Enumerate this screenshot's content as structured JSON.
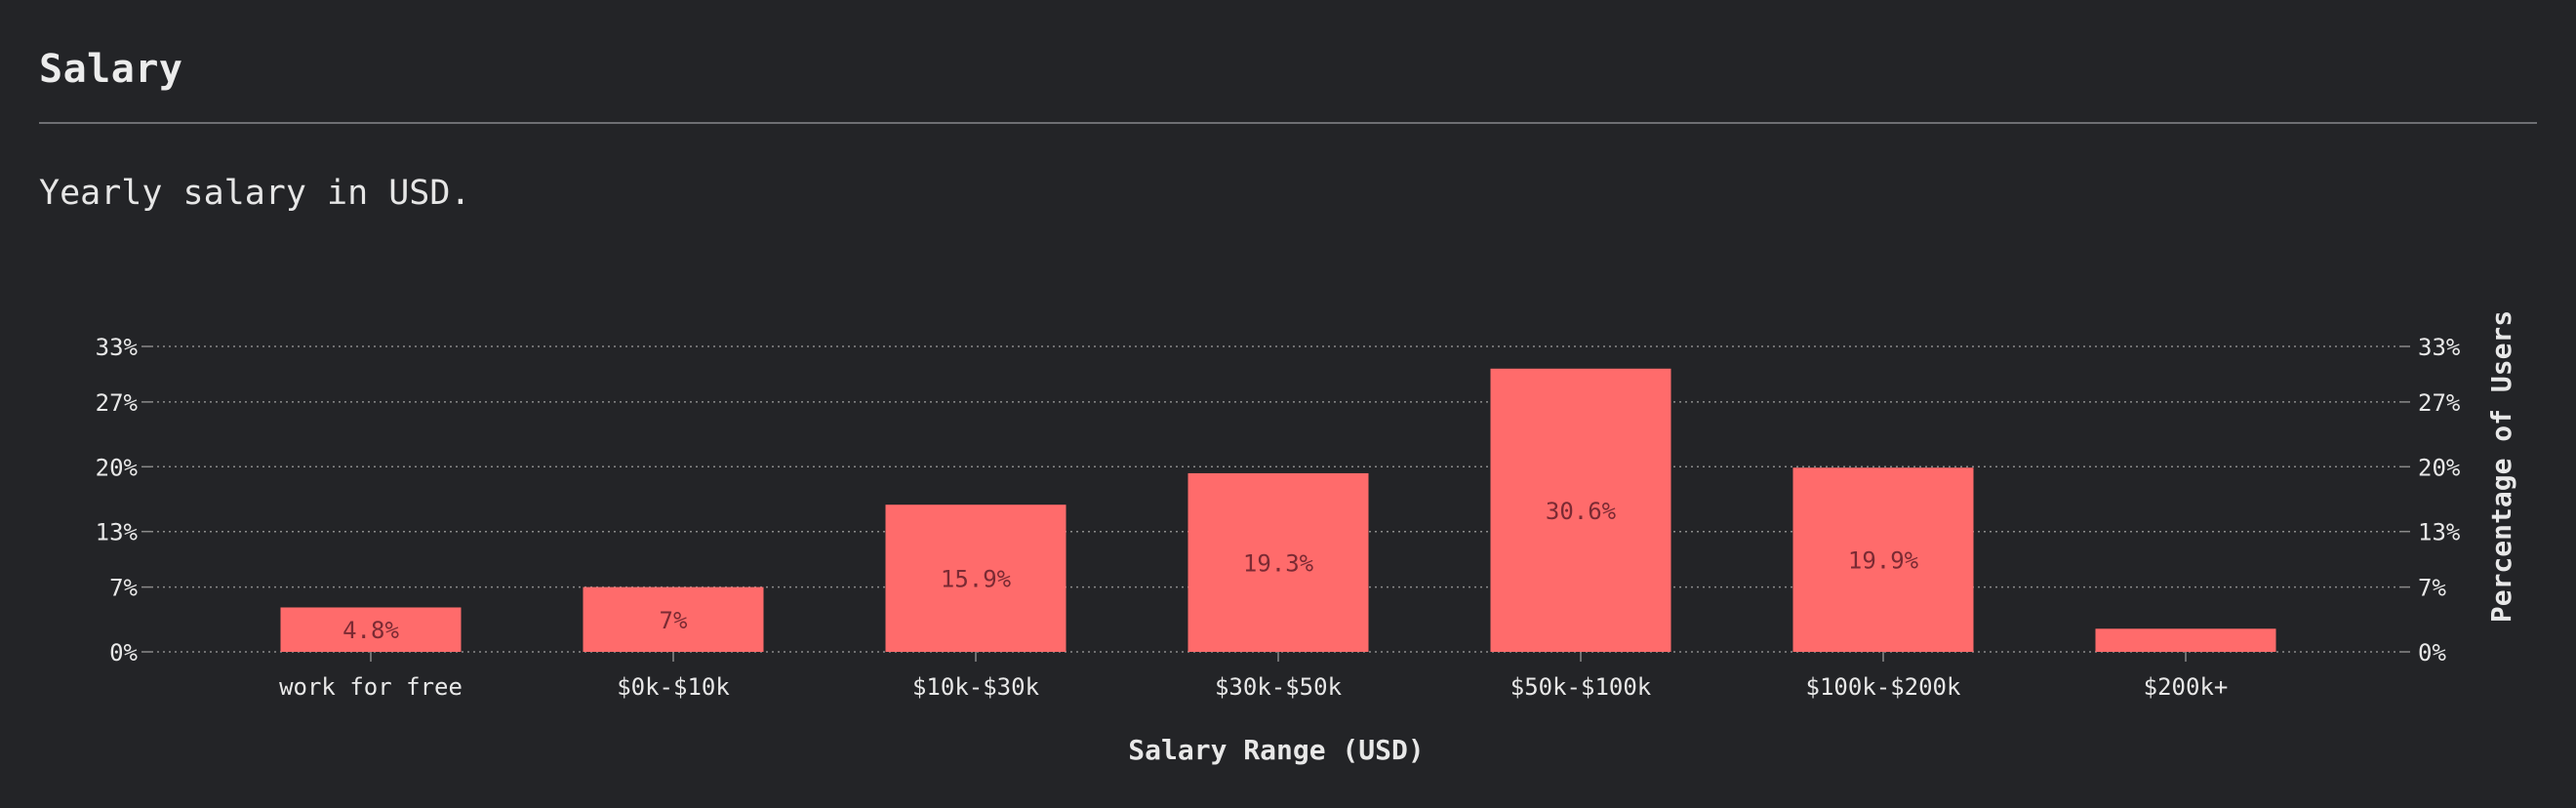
{
  "section": {
    "title": "Salary",
    "description": "Yearly salary in USD."
  },
  "colors": {
    "background": "#232427",
    "bar": "#ff6b6b",
    "bar_label": "#7a2a33",
    "text": "#e8e8e8",
    "grid": "#8a8a8a"
  },
  "chart_data": {
    "type": "bar",
    "categories": [
      "work for free",
      "$0k-$10k",
      "$10k-$30k",
      "$30k-$50k",
      "$50k-$100k",
      "$100k-$200k",
      "$200k+"
    ],
    "values": [
      4.8,
      7,
      15.9,
      19.3,
      30.6,
      19.9,
      2.5
    ],
    "data_labels": [
      "4.8%",
      "7%",
      "15.9%",
      "19.3%",
      "30.6%",
      "19.9%",
      ""
    ],
    "xlabel": "Salary Range (USD)",
    "ylabel": "Percentage of Users",
    "ylim": [
      0,
      33
    ],
    "y_ticks": [
      0,
      7,
      13,
      20,
      27,
      33
    ],
    "y_tick_labels": [
      "0%",
      "7%",
      "13%",
      "20%",
      "27%",
      "33%"
    ],
    "grid": true,
    "legend": "none"
  }
}
